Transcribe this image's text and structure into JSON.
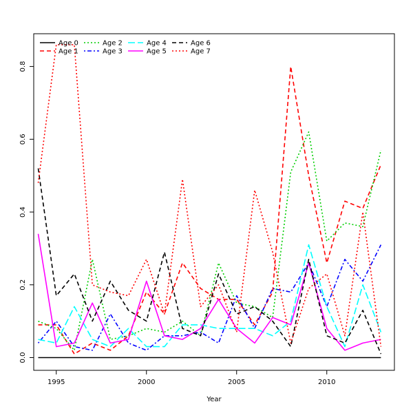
{
  "chart_data": {
    "type": "line",
    "title": "",
    "xlabel": "Year",
    "ylabel": "",
    "xlim": [
      1993.75,
      2013.75
    ],
    "ylim": [
      -0.035,
      0.89
    ],
    "x_ticks": [
      1995,
      2000,
      2005,
      2010
    ],
    "y_ticks": [
      0.0,
      0.2,
      0.4,
      0.6,
      0.8
    ],
    "grid": false,
    "legend_position": "top-left",
    "x": [
      1994,
      1995,
      1996,
      1997,
      1998,
      1999,
      2000,
      2001,
      2002,
      2003,
      2004,
      2005,
      2006,
      2007,
      2008,
      2009,
      2010,
      2011,
      2012,
      2013
    ],
    "series": [
      {
        "name": "Age 0",
        "color": "#000000",
        "dash": "solid",
        "values": [
          0,
          0,
          0,
          0,
          0,
          0,
          0,
          0,
          0,
          0,
          0,
          0,
          0,
          0,
          0,
          0,
          0,
          0,
          0,
          0
        ]
      },
      {
        "name": "Age 1",
        "color": "#ff0000",
        "dash": "dashed",
        "values": [
          0.09,
          0.09,
          0.01,
          0.04,
          0.02,
          0.06,
          0.18,
          0.12,
          0.26,
          0.19,
          0.16,
          0.16,
          0.09,
          0.18,
          0.8,
          0.5,
          0.26,
          0.43,
          0.41,
          0.53
        ]
      },
      {
        "name": "Age 2",
        "color": "#00cd00",
        "dash": "dotted",
        "values": [
          0.1,
          0.08,
          0.02,
          0.27,
          0.05,
          0.06,
          0.08,
          0.07,
          0.1,
          0.06,
          0.26,
          0.15,
          0.14,
          0.11,
          0.51,
          0.62,
          0.32,
          0.37,
          0.36,
          0.57
        ]
      },
      {
        "name": "Age 3",
        "color": "#0000ff",
        "dash": "dashdot",
        "values": [
          0.04,
          0.1,
          0.03,
          0.02,
          0.12,
          0.04,
          0.02,
          0.06,
          0.06,
          0.07,
          0.04,
          0.17,
          0.08,
          0.19,
          0.18,
          0.26,
          0.14,
          0.27,
          0.21,
          0.31
        ]
      },
      {
        "name": "Age 4",
        "color": "#00ffff",
        "dash": "longdash",
        "values": [
          0.05,
          0.04,
          0.14,
          0.05,
          0.03,
          0.08,
          0.03,
          0.03,
          0.09,
          0.09,
          0.08,
          0.08,
          0.08,
          0.06,
          0.1,
          0.31,
          0.14,
          0.03,
          0.2,
          0.07
        ]
      },
      {
        "name": "Age 5",
        "color": "#ff00ff",
        "dash": "solid",
        "values": [
          0.34,
          0.03,
          0.04,
          0.15,
          0.04,
          0.05,
          0.21,
          0.06,
          0.05,
          0.08,
          0.16,
          0.08,
          0.04,
          0.11,
          0.09,
          0.26,
          0.08,
          0.02,
          0.04,
          0.05
        ]
      },
      {
        "name": "Age 6",
        "color": "#000000",
        "dash": "dashed",
        "values": [
          0.52,
          0.17,
          0.23,
          0.1,
          0.21,
          0.13,
          0.1,
          0.29,
          0.08,
          0.06,
          0.23,
          0.12,
          0.14,
          0.1,
          0.03,
          0.27,
          0.06,
          0.04,
          0.13,
          0.01
        ]
      },
      {
        "name": "Age 7",
        "color": "#ff0000",
        "dash": "dotted",
        "values": [
          0.48,
          0.86,
          0.86,
          0.2,
          0.18,
          0.17,
          0.27,
          0.12,
          0.49,
          0.14,
          0.2,
          0.07,
          0.46,
          0.29,
          0.04,
          0.19,
          0.23,
          0.06,
          0.4,
          0.03
        ]
      }
    ]
  }
}
